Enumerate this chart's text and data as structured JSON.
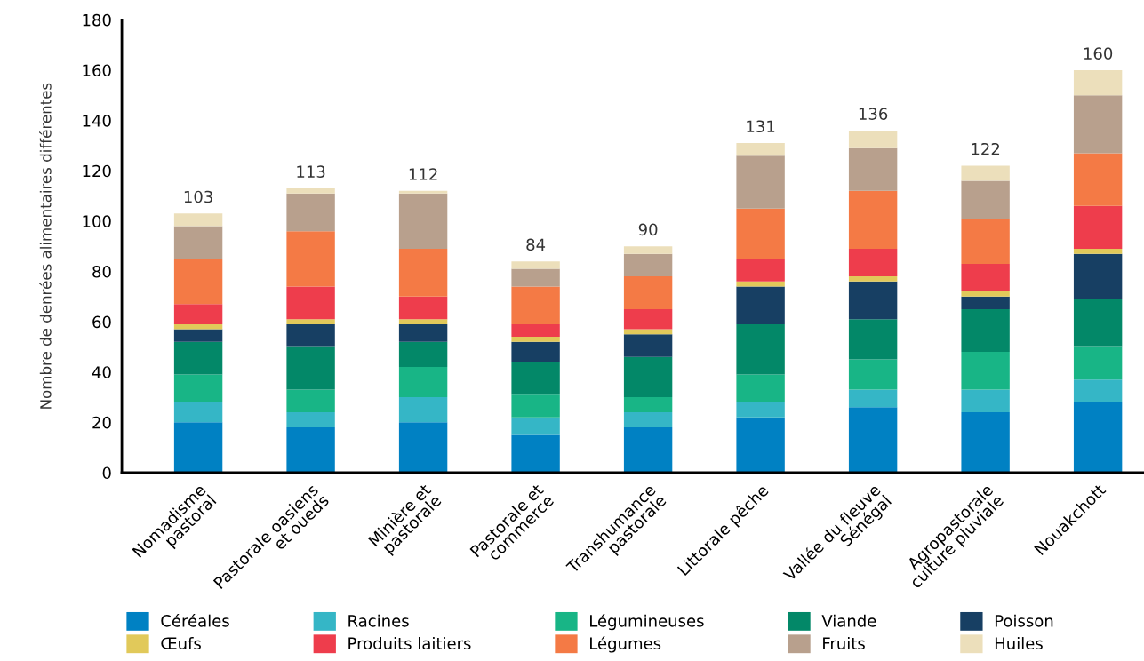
{
  "chart_data": {
    "type": "bar",
    "stacked": true,
    "ylabel": "Nombre de denrées alimentaires différentes",
    "categories": [
      "Nomadisme\npastoral",
      "Pastorale oasiens\net oueds",
      "Minière et\npastorale",
      "Pastorale et\ncommerce",
      "Transhumance\npastorale",
      "Littorale pêche",
      "Vallée du fleuve\nSénégal",
      "Agropastorale\nculture pluviale",
      "Nouakchott"
    ],
    "series": [
      {
        "name": "Céréales",
        "color": "#0081c3",
        "values": [
          20,
          18,
          20,
          15,
          18,
          22,
          26,
          24,
          28
        ]
      },
      {
        "name": "Racines",
        "color": "#35b6c6",
        "values": [
          8,
          6,
          10,
          7,
          6,
          6,
          7,
          9,
          9
        ]
      },
      {
        "name": "Légumineuses",
        "color": "#18b586",
        "values": [
          11,
          9,
          12,
          9,
          6,
          11,
          12,
          15,
          13
        ]
      },
      {
        "name": "Viande",
        "color": "#038868",
        "values": [
          13,
          17,
          10,
          13,
          16,
          20,
          16,
          17,
          19
        ]
      },
      {
        "name": "Poisson",
        "color": "#173f63",
        "values": [
          5,
          9,
          7,
          8,
          9,
          15,
          15,
          5,
          18
        ]
      },
      {
        "name": "Œufs",
        "color": "#e1c95a",
        "values": [
          2,
          2,
          2,
          2,
          2,
          2,
          2,
          2,
          2
        ]
      },
      {
        "name": "Produits laitiers",
        "color": "#ee3d4c",
        "values": [
          8,
          13,
          9,
          5,
          8,
          9,
          11,
          11,
          17
        ]
      },
      {
        "name": "Légumes",
        "color": "#f47a45",
        "values": [
          18,
          22,
          19,
          15,
          13,
          20,
          23,
          18,
          21
        ]
      },
      {
        "name": "Fruits",
        "color": "#b8a08d",
        "values": [
          13,
          15,
          22,
          7,
          9,
          21,
          17,
          15,
          23
        ]
      },
      {
        "name": "Huiles",
        "color": "#ecdfbb",
        "values": [
          5,
          2,
          1,
          3,
          3,
          5,
          7,
          6,
          10
        ]
      }
    ],
    "totals": [
      "103",
      "113",
      "112",
      "84",
      "90",
      "131",
      "136",
      "122",
      "160"
    ],
    "ylim": [
      0,
      180
    ],
    "yticks": [
      0,
      20,
      40,
      60,
      80,
      100,
      120,
      140,
      160,
      180
    ],
    "grid": false,
    "legend": "bottom"
  }
}
